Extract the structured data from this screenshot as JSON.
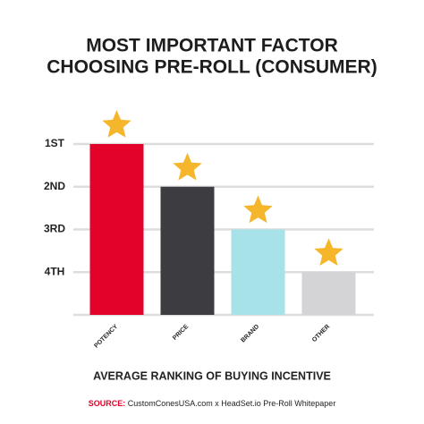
{
  "chart_data": {
    "type": "bar",
    "title": [
      "MOST IMPORTANT FACTOR",
      "CHOOSING PRE-ROLL (CONSUMER)"
    ],
    "categories": [
      "POTENCY",
      "PRICE",
      "BRAND",
      "OTHER"
    ],
    "values": [
      1,
      2,
      3,
      4
    ],
    "colors": [
      "#e3032a",
      "#3c3c41",
      "#a6e2e8",
      "#d4d4d7"
    ],
    "star_color": "#f6b62b",
    "ylim": [
      5,
      1
    ],
    "yticks": [
      {
        "value": 1,
        "label": "1ST"
      },
      {
        "value": 2,
        "label": "2ND"
      },
      {
        "value": 3,
        "label": "3RD"
      },
      {
        "value": 4,
        "label": "4TH"
      }
    ],
    "grid": true,
    "x_label": "AVERAGE RANKING OF BUYING INCENTIVE",
    "source_label": "SOURCE:",
    "source": "CustomConesUSA.com x HeadSet.io Pre-Roll Whitepaper"
  }
}
